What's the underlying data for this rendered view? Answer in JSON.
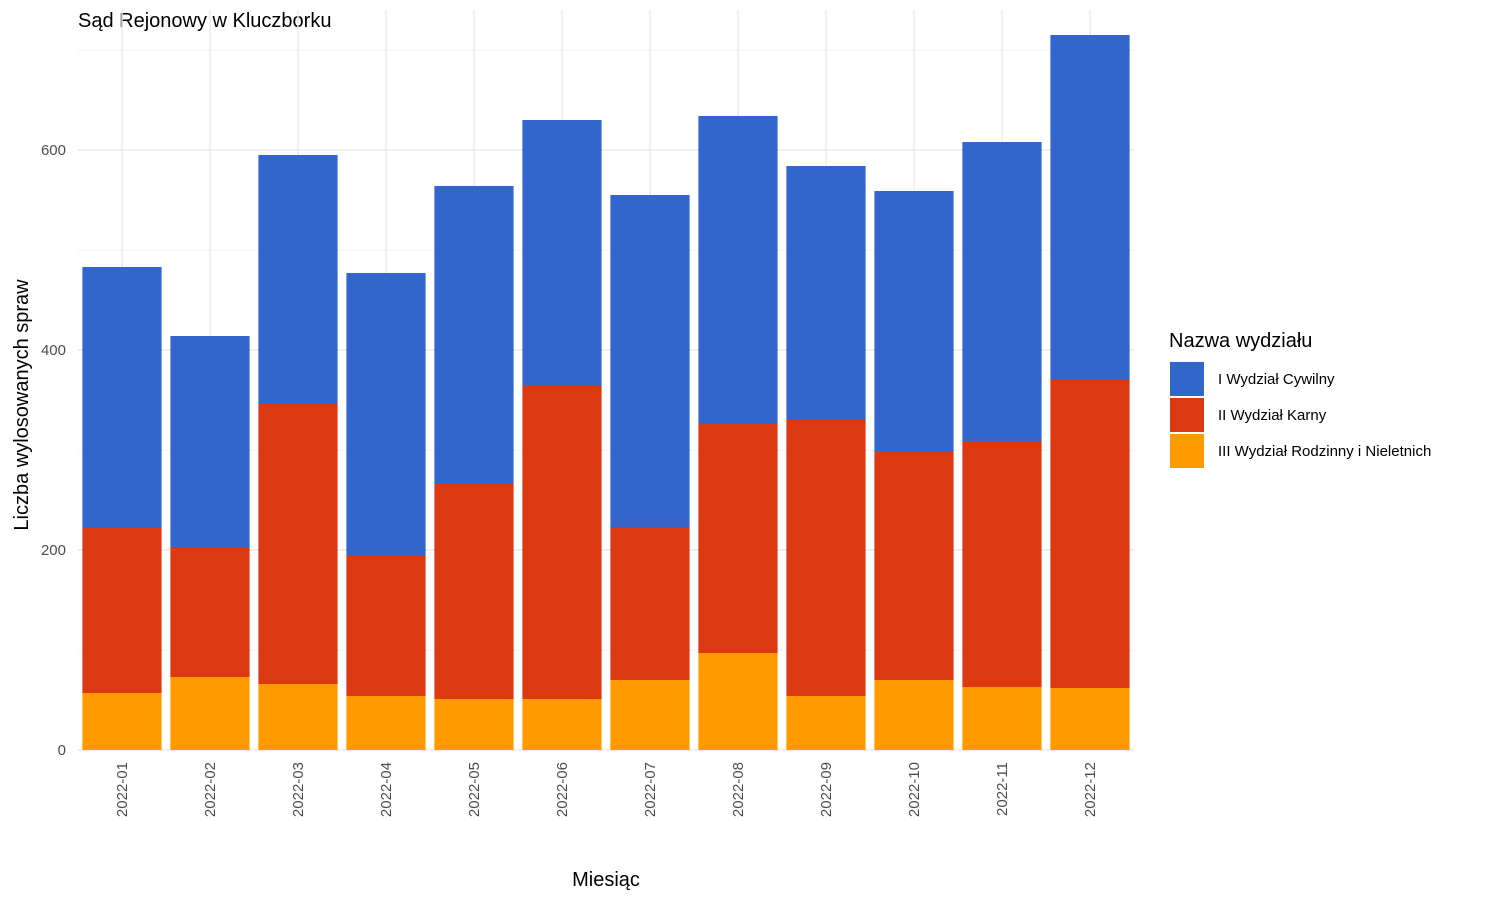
{
  "chart_data": {
    "type": "bar",
    "stacked": true,
    "title": "Sąd Rejonowy w Kluczborku",
    "xlabel": "Miesiąc",
    "ylabel": "Liczba wylosowanych spraw",
    "ylim": [
      0,
      740
    ],
    "yticks": [
      0,
      200,
      400,
      600
    ],
    "grid": true,
    "legend_position": "right",
    "legend_title": "Nazwa wydziału",
    "categories": [
      "2022-01",
      "2022-02",
      "2022-03",
      "2022-04",
      "2022-05",
      "2022-06",
      "2022-07",
      "2022-08",
      "2022-09",
      "2022-10",
      "2022-11",
      "2022-12"
    ],
    "series": [
      {
        "name": "I Wydział Cywilny",
        "color": "#3366cc",
        "values": [
          261,
          212,
          248,
          283,
          297,
          266,
          332,
          308,
          254,
          260,
          299,
          345
        ]
      },
      {
        "name": "II Wydział Karny",
        "color": "#dc3912",
        "values": [
          165,
          129,
          281,
          140,
          216,
          313,
          153,
          229,
          276,
          229,
          246,
          308
        ]
      },
      {
        "name": "III Wydział Rodzinny i Nieletnich",
        "color": "#ff9900",
        "values": [
          57,
          73,
          66,
          54,
          51,
          51,
          70,
          97,
          54,
          70,
          63,
          62
        ]
      }
    ]
  }
}
